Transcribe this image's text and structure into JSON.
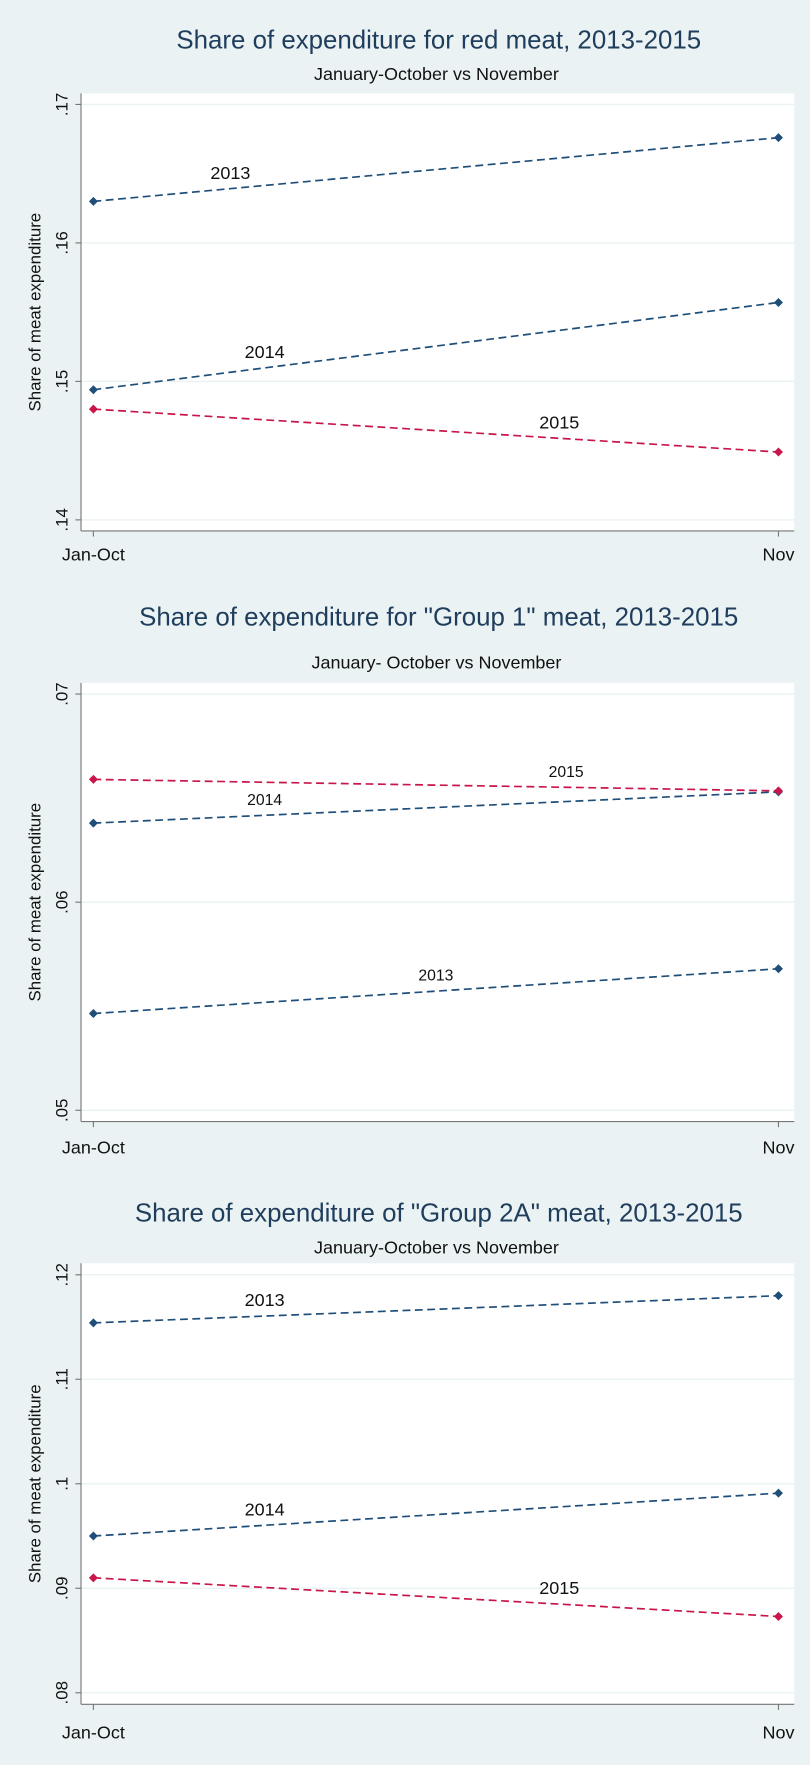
{
  "chart_data": [
    {
      "type": "line",
      "title": "Share of expenditure for red meat, 2013-2015",
      "subtitle": "January-October vs November",
      "y_label": "Share of meat expenditure",
      "categories": [
        "Jan-Oct",
        "Nov"
      ],
      "series": [
        {
          "name": "2013",
          "color": "#1f4e79",
          "values": [
            0.163,
            0.1676
          ]
        },
        {
          "name": "2014",
          "color": "#1f4e79",
          "values": [
            0.1494,
            0.1557
          ]
        },
        {
          "name": "2015",
          "color": "#c8164a",
          "values": [
            0.148,
            0.1449
          ]
        }
      ],
      "ylim": [
        0.1392,
        0.1708
      ],
      "yticks": [
        {
          "value": 0.14,
          "label": ".14"
        },
        {
          "value": 0.15,
          "label": ".15"
        },
        {
          "value": 0.16,
          "label": ".16"
        },
        {
          "value": 0.17,
          "label": ".17"
        }
      ],
      "grid": true
    },
    {
      "type": "line",
      "title": "Share of expenditure for \"Group 1\" meat, 2013-2015",
      "subtitle": "January- October vs November",
      "y_label": "Share of meat expenditure",
      "categories": [
        "Jan-Oct",
        "Nov"
      ],
      "series": [
        {
          "name": "2013",
          "color": "#1f4e79",
          "values": [
            0.05465,
            0.0568
          ]
        },
        {
          "name": "2014",
          "color": "#1f4e79",
          "values": [
            0.0638,
            0.0653
          ]
        },
        {
          "name": "2015",
          "color": "#c8164a",
          "values": [
            0.0659,
            0.06535
          ]
        }
      ],
      "ylim": [
        0.04946,
        0.07054
      ],
      "yticks": [
        {
          "value": 0.05,
          "label": ".05"
        },
        {
          "value": 0.06,
          "label": ".06"
        },
        {
          "value": 0.07,
          "label": ".07"
        }
      ],
      "grid": true
    },
    {
      "type": "line",
      "title": "Share of expenditure of \"Group 2A\" meat, 2013-2015",
      "subtitle": "January-October vs November",
      "y_label": "Share of meat expenditure",
      "categories": [
        "Jan-Oct",
        "Nov"
      ],
      "series": [
        {
          "name": "2013",
          "color": "#1f4e79",
          "values": [
            0.1154,
            0.118
          ]
        },
        {
          "name": "2014",
          "color": "#1f4e79",
          "values": [
            0.095,
            0.0991
          ]
        },
        {
          "name": "2015",
          "color": "#c8164a",
          "values": [
            0.091,
            0.0873
          ]
        }
      ],
      "ylim": [
        0.0789,
        0.1211
      ],
      "yticks": [
        {
          "value": 0.08,
          "label": ".08"
        },
        {
          "value": 0.09,
          "label": ".09"
        },
        {
          "value": 0.1,
          "label": ".1"
        },
        {
          "value": 0.11,
          "label": ".11"
        },
        {
          "value": 0.12,
          "label": ".12"
        }
      ],
      "grid": true
    }
  ]
}
